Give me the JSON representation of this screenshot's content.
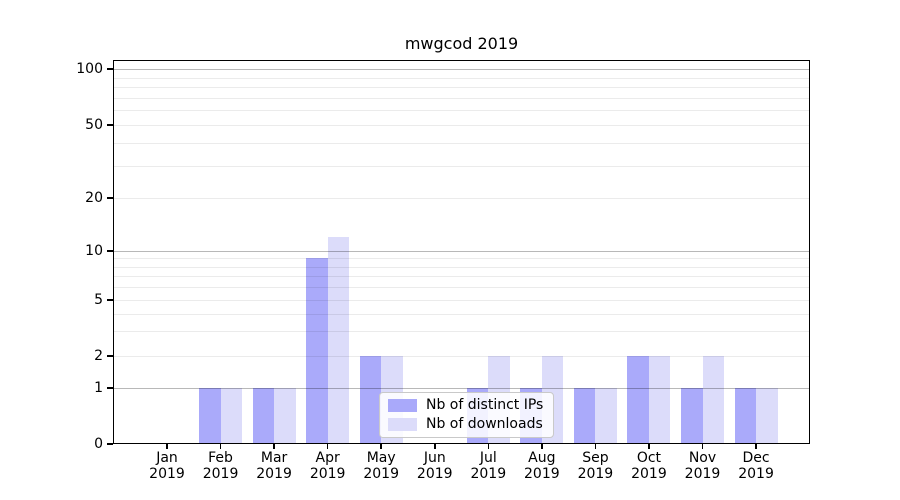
{
  "chart_data": {
    "type": "bar",
    "title": "mwgcod 2019",
    "categories": [
      "Jan 2019",
      "Feb 2019",
      "Mar 2019",
      "Apr 2019",
      "May 2019",
      "Jun 2019",
      "Jul 2019",
      "Aug 2019",
      "Sep 2019",
      "Oct 2019",
      "Nov 2019",
      "Dec 2019"
    ],
    "series": [
      {
        "name": "Nb of distinct IPs",
        "color": "#a9a9fa",
        "fill": "rgba(85,85,245,0.5)",
        "values": [
          0,
          1,
          1,
          9,
          2,
          0,
          1,
          1,
          1,
          2,
          1,
          1
        ]
      },
      {
        "name": "Nb of downloads",
        "color": "#dcdcfa",
        "fill": "rgba(185,185,245,0.5)",
        "values": [
          0,
          1,
          1,
          12,
          2,
          0,
          2,
          2,
          1,
          2,
          2,
          1
        ]
      }
    ],
    "xlabel": "",
    "ylabel": "",
    "y_ticks": [
      0,
      1,
      2,
      5,
      10,
      20,
      50,
      100
    ],
    "y_major_gridlines": [
      1,
      10,
      100
    ],
    "y_minor_gridlines": [
      2,
      3,
      4,
      5,
      6,
      7,
      8,
      9,
      20,
      30,
      40,
      50,
      60,
      70,
      80,
      90
    ],
    "y_scale": "symlog",
    "ylim": [
      0,
      112
    ],
    "grid": "horizontal",
    "legend_position": "inside lower-center"
  }
}
